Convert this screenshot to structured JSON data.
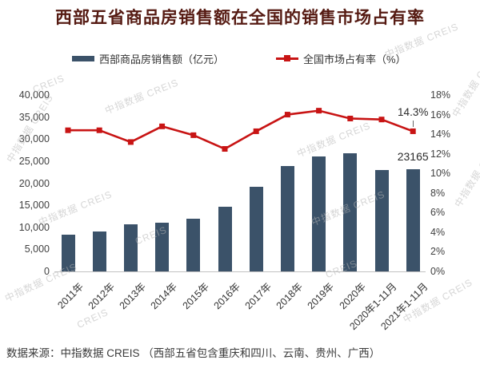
{
  "title": "西部五省商品房销售额在全国的销售市场占有率",
  "legend": {
    "bars_label": "西部商品房销售额（亿元）",
    "line_label": "全国市场占有率（%）"
  },
  "annotations": {
    "last_bar_label": "23165",
    "last_point_label": "14.3%"
  },
  "watermark_text": "中指数据 CREIS",
  "watermark_short": "CREIS",
  "footer": "数据来源：中指数据 CREIS （西部五省包含重庆和四川、云南、贵州、广西）",
  "colors": {
    "bar": "#3b5269",
    "line": "#c81414",
    "title": "#551a12",
    "axis_text": "#404040",
    "axis_line": "#c2c2c2"
  },
  "chart_data": {
    "type": "bar",
    "subtype": "combo bar+line, dual axis",
    "categories": [
      "2011年",
      "2012年",
      "2013年",
      "2014年",
      "2015年",
      "2016年",
      "2017年",
      "2018年",
      "2019年",
      "2020年",
      "2020年1-11月",
      "2021年1-11月"
    ],
    "series": [
      {
        "name": "西部商品房销售额（亿元）",
        "type": "bar",
        "axis": "left",
        "values": [
          8300,
          9000,
          10700,
          11100,
          12000,
          14600,
          19100,
          23900,
          26000,
          26800,
          22900,
          23165
        ]
      },
      {
        "name": "全国市场占有率（%）",
        "type": "line",
        "axis": "right",
        "values": [
          14.4,
          14.4,
          13.2,
          14.8,
          13.9,
          12.5,
          14.3,
          16.0,
          16.4,
          15.6,
          15.5,
          14.3
        ]
      }
    ],
    "left_axis": {
      "min": 0,
      "max": 40000,
      "step": 5000,
      "tick_labels": [
        "40,000",
        "35,000",
        "30,000",
        "25,000",
        "20,000",
        "15,000",
        "10,000",
        "5,000",
        "0"
      ]
    },
    "right_axis": {
      "min": 0,
      "max": 18,
      "step": 2,
      "tick_labels": [
        "18%",
        "16%",
        "14%",
        "12%",
        "10%",
        "8%",
        "6%",
        "4%",
        "2%",
        "0%"
      ]
    },
    "grid": false,
    "legend_position": "top",
    "title": "西部五省商品房销售额在全国的销售市场占有率"
  }
}
